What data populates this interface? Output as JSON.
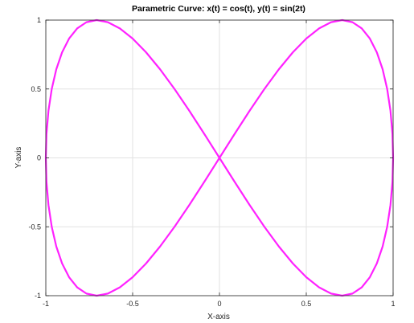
{
  "chart_data": {
    "type": "line",
    "title": "Parametric Curve: x(t) = cos(t), y(t) = sin(2t)",
    "xlabel": "X-axis",
    "ylabel": "Y-axis",
    "xlim": [
      -1,
      1
    ],
    "ylim": [
      -1,
      1
    ],
    "xticks": [
      -1,
      -0.5,
      0,
      0.5,
      1
    ],
    "xtick_labels": [
      "-1",
      "-0.5",
      "0",
      "0.5",
      "1"
    ],
    "yticks": [
      -1,
      -0.5,
      0,
      0.5,
      1
    ],
    "ytick_labels": [
      "-1",
      "-0.5",
      "0",
      "0.5",
      "1"
    ],
    "grid": true,
    "series": [
      {
        "color": "#ff22ff",
        "x": [
          1.0,
          0.9962,
          0.9848,
          0.9659,
          0.9397,
          0.9063,
          0.866,
          0.8192,
          0.766,
          0.7071,
          0.6428,
          0.5736,
          0.5,
          0.4226,
          0.342,
          0.2588,
          0.1736,
          0.0872,
          0.0,
          -0.0872,
          -0.1736,
          -0.2588,
          -0.342,
          -0.4226,
          -0.5,
          -0.5736,
          -0.6428,
          -0.7071,
          -0.766,
          -0.8192,
          -0.866,
          -0.9063,
          -0.9397,
          -0.9659,
          -0.9848,
          -0.9962,
          -1.0,
          -0.9962,
          -0.9848,
          -0.9659,
          -0.9397,
          -0.9063,
          -0.866,
          -0.8192,
          -0.766,
          -0.7071,
          -0.6428,
          -0.5736,
          -0.5,
          -0.4226,
          -0.342,
          -0.2588,
          -0.1736,
          -0.0872,
          0.0,
          0.0872,
          0.1736,
          0.2588,
          0.342,
          0.4226,
          0.5,
          0.5736,
          0.6428,
          0.7071,
          0.766,
          0.8192,
          0.866,
          0.9063,
          0.9397,
          0.9659,
          0.9848,
          0.9962,
          1.0
        ],
        "y": [
          0.0,
          0.1736,
          0.342,
          0.5,
          0.6428,
          0.766,
          0.866,
          0.9397,
          0.9848,
          1.0,
          0.9848,
          0.9397,
          0.866,
          0.766,
          0.6428,
          0.5,
          0.342,
          0.1736,
          0.0,
          -0.1736,
          -0.342,
          -0.5,
          -0.6428,
          -0.766,
          -0.866,
          -0.9397,
          -0.9848,
          -1.0,
          -0.9848,
          -0.9397,
          -0.866,
          -0.766,
          -0.6428,
          -0.5,
          -0.342,
          -0.1736,
          0.0,
          0.1736,
          0.342,
          0.5,
          0.6428,
          0.766,
          0.866,
          0.9397,
          0.9848,
          1.0,
          0.9848,
          0.9397,
          0.866,
          0.766,
          0.6428,
          0.5,
          0.342,
          0.1736,
          0.0,
          -0.1736,
          -0.342,
          -0.5,
          -0.6428,
          -0.766,
          -0.866,
          -0.9397,
          -0.9848,
          -1.0,
          -0.9848,
          -0.9397,
          -0.866,
          -0.766,
          -0.6428,
          -0.5,
          -0.342,
          -0.1736,
          0.0
        ]
      }
    ],
    "colors": {
      "curve": "#ff22ff",
      "grid": "#e2e2e2",
      "axes": "#262626",
      "background": "#ffffff"
    }
  }
}
